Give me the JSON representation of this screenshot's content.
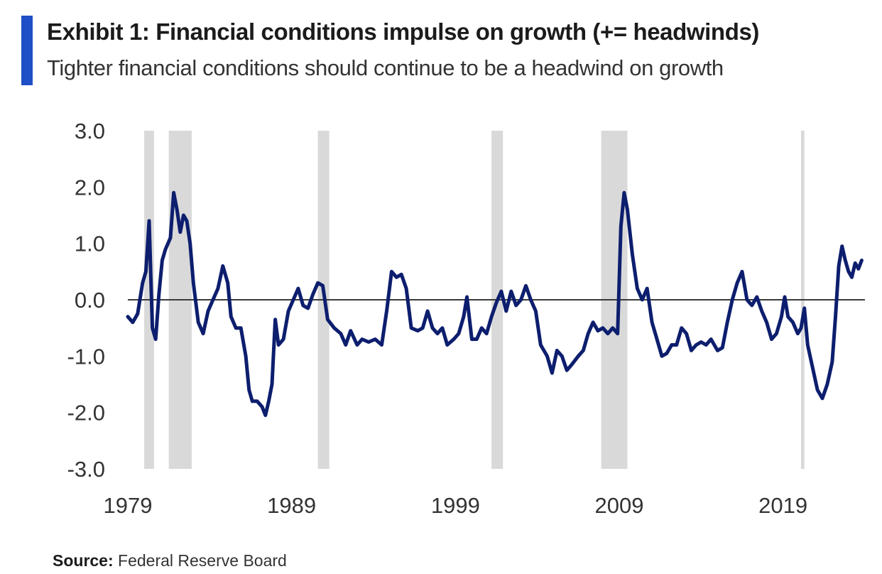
{
  "header": {
    "title": "Exhibit 1: Financial conditions impulse on growth (+= headwinds)",
    "subtitle": "Tighter financial conditions should continue to be a headwind on growth"
  },
  "footer": {
    "source_label": "Source:",
    "source_text": "Federal Reserve Board"
  },
  "colors": {
    "accent": "#1f4fc6",
    "line": "#0d1e6e",
    "recession": "#d9d9d9",
    "zero_line": "#3a3a3a"
  },
  "chart_data": {
    "type": "line",
    "ylim": [
      -3.0,
      3.0
    ],
    "xlim": [
      1979.0,
      2024.0
    ],
    "y_ticks": [
      "3.0",
      "2.0",
      "1.0",
      "0.0",
      "-1.0",
      "-2.0",
      "-3.0"
    ],
    "x_ticks": [
      "1979",
      "1989",
      "1999",
      "2009",
      "2019"
    ],
    "grid": false,
    "recessions": [
      [
        1980.0,
        1980.6
      ],
      [
        1981.5,
        1982.9
      ],
      [
        1990.6,
        1991.3
      ],
      [
        2001.2,
        2001.9
      ],
      [
        2007.9,
        2009.5
      ],
      [
        2020.1,
        2020.3
      ]
    ],
    "series": [
      {
        "points": [
          [
            1979.0,
            -0.3
          ],
          [
            1979.3,
            -0.4
          ],
          [
            1979.6,
            -0.25
          ],
          [
            1979.9,
            0.3
          ],
          [
            1980.1,
            0.5
          ],
          [
            1980.3,
            1.4
          ],
          [
            1980.5,
            -0.5
          ],
          [
            1980.7,
            -0.7
          ],
          [
            1980.9,
            0.1
          ],
          [
            1981.1,
            0.7
          ],
          [
            1981.3,
            0.9
          ],
          [
            1981.6,
            1.1
          ],
          [
            1981.8,
            1.9
          ],
          [
            1982.0,
            1.6
          ],
          [
            1982.2,
            1.2
          ],
          [
            1982.4,
            1.5
          ],
          [
            1982.6,
            1.4
          ],
          [
            1982.8,
            1.0
          ],
          [
            1983.0,
            0.3
          ],
          [
            1983.3,
            -0.4
          ],
          [
            1983.6,
            -0.6
          ],
          [
            1983.9,
            -0.2
          ],
          [
            1984.2,
            0.0
          ],
          [
            1984.5,
            0.2
          ],
          [
            1984.8,
            0.6
          ],
          [
            1985.1,
            0.3
          ],
          [
            1985.3,
            -0.3
          ],
          [
            1985.6,
            -0.5
          ],
          [
            1985.9,
            -0.5
          ],
          [
            1986.2,
            -1.0
          ],
          [
            1986.4,
            -1.6
          ],
          [
            1986.6,
            -1.8
          ],
          [
            1986.9,
            -1.8
          ],
          [
            1987.2,
            -1.9
          ],
          [
            1987.4,
            -2.05
          ],
          [
            1987.6,
            -1.8
          ],
          [
            1987.8,
            -1.5
          ],
          [
            1988.0,
            -0.35
          ],
          [
            1988.2,
            -0.8
          ],
          [
            1988.5,
            -0.7
          ],
          [
            1988.8,
            -0.2
          ],
          [
            1989.1,
            0.0
          ],
          [
            1989.4,
            0.2
          ],
          [
            1989.7,
            -0.1
          ],
          [
            1990.0,
            -0.15
          ],
          [
            1990.3,
            0.1
          ],
          [
            1990.6,
            0.3
          ],
          [
            1990.9,
            0.25
          ],
          [
            1991.2,
            -0.35
          ],
          [
            1991.6,
            -0.5
          ],
          [
            1992.0,
            -0.6
          ],
          [
            1992.3,
            -0.8
          ],
          [
            1992.6,
            -0.55
          ],
          [
            1993.0,
            -0.8
          ],
          [
            1993.3,
            -0.7
          ],
          [
            1993.7,
            -0.75
          ],
          [
            1994.1,
            -0.7
          ],
          [
            1994.5,
            -0.8
          ],
          [
            1994.8,
            -0.2
          ],
          [
            1995.1,
            0.5
          ],
          [
            1995.4,
            0.4
          ],
          [
            1995.7,
            0.45
          ],
          [
            1996.0,
            0.2
          ],
          [
            1996.3,
            -0.5
          ],
          [
            1996.7,
            -0.55
          ],
          [
            1997.0,
            -0.5
          ],
          [
            1997.3,
            -0.2
          ],
          [
            1997.6,
            -0.5
          ],
          [
            1997.9,
            -0.6
          ],
          [
            1998.2,
            -0.5
          ],
          [
            1998.5,
            -0.8
          ],
          [
            1998.9,
            -0.7
          ],
          [
            1999.2,
            -0.6
          ],
          [
            1999.5,
            -0.3
          ],
          [
            1999.7,
            0.05
          ],
          [
            2000.0,
            -0.7
          ],
          [
            2000.3,
            -0.7
          ],
          [
            2000.6,
            -0.5
          ],
          [
            2000.9,
            -0.6
          ],
          [
            2001.2,
            -0.3
          ],
          [
            2001.5,
            -0.05
          ],
          [
            2001.8,
            0.15
          ],
          [
            2002.1,
            -0.2
          ],
          [
            2002.4,
            0.15
          ],
          [
            2002.7,
            -0.1
          ],
          [
            2003.0,
            0.0
          ],
          [
            2003.3,
            0.25
          ],
          [
            2003.6,
            0.0
          ],
          [
            2003.9,
            -0.2
          ],
          [
            2004.2,
            -0.8
          ],
          [
            2004.6,
            -1.0
          ],
          [
            2004.9,
            -1.3
          ],
          [
            2005.2,
            -0.9
          ],
          [
            2005.5,
            -1.0
          ],
          [
            2005.8,
            -1.25
          ],
          [
            2006.1,
            -1.15
          ],
          [
            2006.5,
            -1.0
          ],
          [
            2006.8,
            -0.9
          ],
          [
            2007.1,
            -0.6
          ],
          [
            2007.4,
            -0.4
          ],
          [
            2007.7,
            -0.55
          ],
          [
            2008.0,
            -0.5
          ],
          [
            2008.3,
            -0.6
          ],
          [
            2008.6,
            -0.5
          ],
          [
            2008.9,
            -0.6
          ],
          [
            2009.1,
            1.3
          ],
          [
            2009.3,
            1.9
          ],
          [
            2009.5,
            1.6
          ],
          [
            2009.8,
            0.8
          ],
          [
            2010.1,
            0.2
          ],
          [
            2010.4,
            0.0
          ],
          [
            2010.7,
            0.2
          ],
          [
            2011.0,
            -0.4
          ],
          [
            2011.3,
            -0.7
          ],
          [
            2011.6,
            -1.0
          ],
          [
            2011.9,
            -0.95
          ],
          [
            2012.2,
            -0.8
          ],
          [
            2012.5,
            -0.8
          ],
          [
            2012.8,
            -0.5
          ],
          [
            2013.1,
            -0.6
          ],
          [
            2013.4,
            -0.9
          ],
          [
            2013.7,
            -0.8
          ],
          [
            2014.0,
            -0.75
          ],
          [
            2014.3,
            -0.8
          ],
          [
            2014.6,
            -0.7
          ],
          [
            2015.0,
            -0.9
          ],
          [
            2015.3,
            -0.85
          ],
          [
            2015.6,
            -0.4
          ],
          [
            2015.9,
            0.0
          ],
          [
            2016.2,
            0.3
          ],
          [
            2016.5,
            0.5
          ],
          [
            2016.8,
            0.0
          ],
          [
            2017.1,
            -0.1
          ],
          [
            2017.4,
            0.05
          ],
          [
            2017.7,
            -0.2
          ],
          [
            2018.0,
            -0.4
          ],
          [
            2018.3,
            -0.7
          ],
          [
            2018.6,
            -0.6
          ],
          [
            2018.9,
            -0.3
          ],
          [
            2019.1,
            0.05
          ],
          [
            2019.3,
            -0.3
          ],
          [
            2019.6,
            -0.4
          ],
          [
            2019.9,
            -0.6
          ],
          [
            2020.1,
            -0.5
          ],
          [
            2020.3,
            -0.15
          ],
          [
            2020.5,
            -0.8
          ],
          [
            2020.8,
            -1.2
          ],
          [
            2021.1,
            -1.6
          ],
          [
            2021.4,
            -1.75
          ],
          [
            2021.7,
            -1.5
          ],
          [
            2022.0,
            -1.1
          ],
          [
            2022.2,
            -0.3
          ],
          [
            2022.4,
            0.6
          ],
          [
            2022.6,
            0.95
          ],
          [
            2022.8,
            0.7
          ],
          [
            2023.0,
            0.5
          ],
          [
            2023.2,
            0.4
          ],
          [
            2023.4,
            0.65
          ],
          [
            2023.6,
            0.55
          ],
          [
            2023.8,
            0.7
          ]
        ]
      }
    ]
  }
}
